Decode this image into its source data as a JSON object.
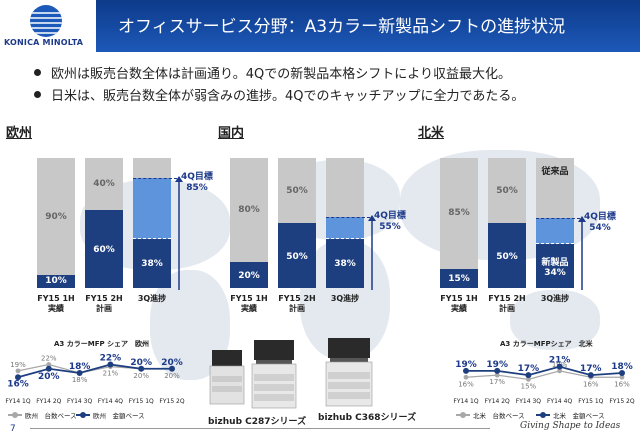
{
  "header": {
    "title": "オフィスサービス分野：A3カラー新製品シフトの進捗状況",
    "logo_text": "KONICA MINOLTA",
    "accent_color": "#1d59b8"
  },
  "bullets": [
    "欧州は販売台数全体は計画通り。4Qでの新製品本格シフトにより収益最大化。",
    "日米は、販売台数全体が弱含みの進捗。4Qでのキャッチアップに全力であたる。"
  ],
  "colors": {
    "old": "#c8c8c8",
    "new_dark": "#1e3f7f",
    "new_light": "#5e94dc",
    "old_line": "#a8a8a8"
  },
  "chart_data": [
    {
      "type": "bar",
      "stacked": true,
      "title": "欧州",
      "categories": [
        "FY15 1H\n実績",
        "FY15 2H\n計画",
        "3Q進捗"
      ],
      "series": [
        {
          "name": "",
          "values": [
            10,
            60,
            38
          ]
        },
        {
          "name": "",
          "values": [
            90,
            40,
            62
          ]
        }
      ],
      "top_labels": [
        "90%",
        "40%",
        ""
      ],
      "bottom_labels": [
        "10%",
        "60%",
        "38%"
      ],
      "target": {
        "label": "4Q目標\n85%",
        "value": 85
      },
      "ylim": [
        0,
        100
      ]
    },
    {
      "type": "bar",
      "stacked": true,
      "title": "国内",
      "categories": [
        "FY15 1H\n実績",
        "FY15 2H\n計画",
        "3Q進捗"
      ],
      "series": [
        {
          "name": "",
          "values": [
            20,
            50,
            38
          ]
        },
        {
          "name": "",
          "values": [
            80,
            50,
            62
          ]
        }
      ],
      "top_labels": [
        "80%",
        "50%",
        ""
      ],
      "bottom_labels": [
        "20%",
        "50%",
        "38%"
      ],
      "target": {
        "label": "4Q目標\n55%",
        "value": 55
      },
      "ylim": [
        0,
        100
      ]
    },
    {
      "type": "bar",
      "stacked": true,
      "title": "北米",
      "categories": [
        "FY15 1H\n実績",
        "FY15 2H\n計画",
        "3Q進捗"
      ],
      "series": [
        {
          "name": "新製品",
          "values": [
            15,
            50,
            34
          ]
        },
        {
          "name": "従来品",
          "values": [
            85,
            50,
            66
          ]
        }
      ],
      "top_labels": [
        "85%",
        "50%",
        "従来品"
      ],
      "bottom_labels": [
        "15%",
        "50%",
        "新製品\n34%"
      ],
      "target": {
        "label": "4Q目標\n54%",
        "value": 54
      },
      "ylim": [
        0,
        100
      ]
    },
    {
      "type": "line",
      "title": "A3 カラーMFP シェア　欧州",
      "categories": [
        "FY14 1Q",
        "FY14 2Q",
        "FY14 3Q",
        "FY14 4Q",
        "FY15 1Q",
        "FY15 2Q"
      ],
      "series": [
        {
          "name": "欧州　台数ベース",
          "values": [
            19,
            22,
            18,
            21,
            20,
            20
          ]
        },
        {
          "name": "欧州　金額ベース",
          "values": [
            16,
            20,
            18,
            22,
            20,
            20
          ]
        }
      ],
      "ylim": [
        10,
        26
      ]
    },
    {
      "type": "line",
      "title": "A3 カラーMFPシェア　北米",
      "categories": [
        "FY14 1Q",
        "FY14 2Q",
        "FY14 3Q",
        "FY14 4Q",
        "FY15 1Q",
        "FY15 2Q"
      ],
      "series": [
        {
          "name": "北米　台数ベース",
          "values": [
            16,
            17,
            15,
            19,
            16,
            16
          ]
        },
        {
          "name": "北米　金額ベース",
          "values": [
            19,
            19,
            17,
            21,
            17,
            18
          ]
        }
      ],
      "ylim": [
        10,
        26
      ]
    }
  ],
  "products": [
    {
      "label": "bizhub C287シリーズ"
    },
    {
      "label": "bizhub C368シリーズ"
    }
  ],
  "footer": {
    "page_number": "7",
    "tagline": "Giving Shape to Ideas"
  }
}
